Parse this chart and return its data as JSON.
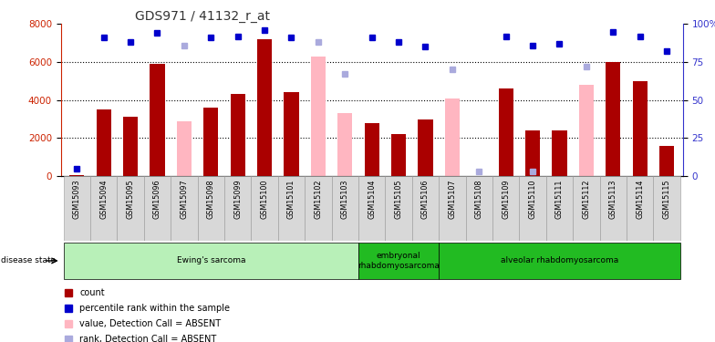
{
  "title": "GDS971 / 41132_r_at",
  "samples": [
    "GSM15093",
    "GSM15094",
    "GSM15095",
    "GSM15096",
    "GSM15097",
    "GSM15098",
    "GSM15099",
    "GSM15100",
    "GSM15101",
    "GSM15102",
    "GSM15103",
    "GSM15104",
    "GSM15105",
    "GSM15106",
    "GSM15107",
    "GSM15108",
    "GSM15109",
    "GSM15110",
    "GSM15111",
    "GSM15112",
    "GSM15113",
    "GSM15114",
    "GSM15115"
  ],
  "count": [
    50,
    3500,
    3100,
    5900,
    null,
    3600,
    4300,
    7200,
    4400,
    null,
    null,
    2800,
    2200,
    3000,
    null,
    null,
    4600,
    2400,
    2400,
    null,
    6000,
    5000,
    1600
  ],
  "count_absent": [
    null,
    null,
    null,
    null,
    2900,
    null,
    null,
    null,
    null,
    6300,
    3300,
    null,
    null,
    null,
    4100,
    null,
    null,
    null,
    null,
    4800,
    null,
    null,
    null
  ],
  "rank": [
    5,
    91,
    88,
    94,
    null,
    91,
    92,
    96,
    91,
    null,
    null,
    91,
    88,
    85,
    null,
    null,
    92,
    86,
    87,
    null,
    95,
    92,
    82
  ],
  "rank_absent": [
    null,
    null,
    null,
    null,
    86,
    null,
    null,
    null,
    null,
    88,
    67,
    null,
    null,
    null,
    70,
    3,
    null,
    3,
    null,
    72,
    null,
    null,
    null
  ],
  "disease_groups": [
    {
      "label": "Ewing's sarcoma",
      "start": 0,
      "end": 11,
      "light": true
    },
    {
      "label": "embryonal\nrhabdomyosarcoma",
      "start": 11,
      "end": 14,
      "light": false
    },
    {
      "label": "alveolar rhabdomyosarcoma",
      "start": 14,
      "end": 23,
      "light": false
    }
  ],
  "ylim_left": [
    0,
    8000
  ],
  "ylim_right": [
    0,
    100
  ],
  "yticks_left": [
    0,
    2000,
    4000,
    6000,
    8000
  ],
  "yticks_right": [
    0,
    25,
    50,
    75,
    100
  ],
  "bar_color_dark": "#aa0000",
  "bar_color_absent": "#ffb6c1",
  "dot_color_present": "#0000cc",
  "dot_color_absent": "#aaaadd",
  "left_axis_color": "#cc2200",
  "right_axis_color": "#3333cc",
  "grid_color": "#000000",
  "color_light_green": "#b8f0b8",
  "color_dark_green": "#22bb22"
}
